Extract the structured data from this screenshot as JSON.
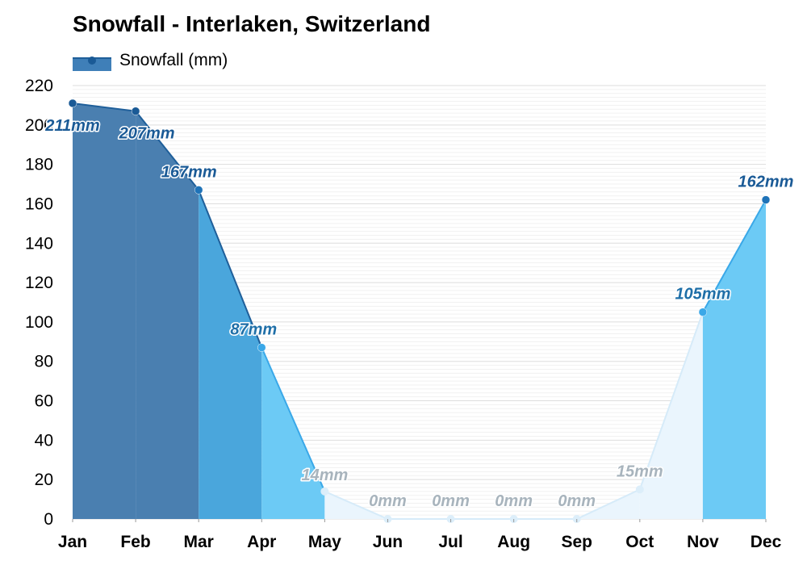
{
  "chart_data": {
    "type": "area",
    "title": "Snowfall - Interlaken, Switzerland",
    "categories": [
      "Jan",
      "Feb",
      "Mar",
      "Apr",
      "May",
      "Jun",
      "Jul",
      "Aug",
      "Sep",
      "Oct",
      "Nov",
      "Dec"
    ],
    "series": [
      {
        "name": "Snowfall (mm)",
        "values": [
          211,
          207,
          167,
          87,
          14,
          0,
          0,
          0,
          0,
          15,
          105,
          162
        ],
        "data_labels": [
          "211mm",
          "207mm",
          "167mm",
          "87mm",
          "14mm",
          "0mm",
          "0mm",
          "0mm",
          "0mm",
          "15mm",
          "105mm",
          "162mm"
        ]
      }
    ],
    "ylim": [
      0,
      220
    ],
    "y_ticks": [
      0,
      20,
      40,
      60,
      80,
      100,
      120,
      140,
      160,
      180,
      200,
      220
    ],
    "grid": true,
    "legend_position": "top-left",
    "xlabel": "",
    "ylabel": "",
    "colors": {
      "level_1": "#4a7fb0",
      "level_2": "#4aa6dc",
      "level_3": "#6ccaf5",
      "level_4": "#eaf5fd",
      "label_dark": "#1a5a96",
      "label_mid": "#1f6fa8",
      "label_muted": "#a8b4bd",
      "grid": "#e6e6e6"
    }
  }
}
